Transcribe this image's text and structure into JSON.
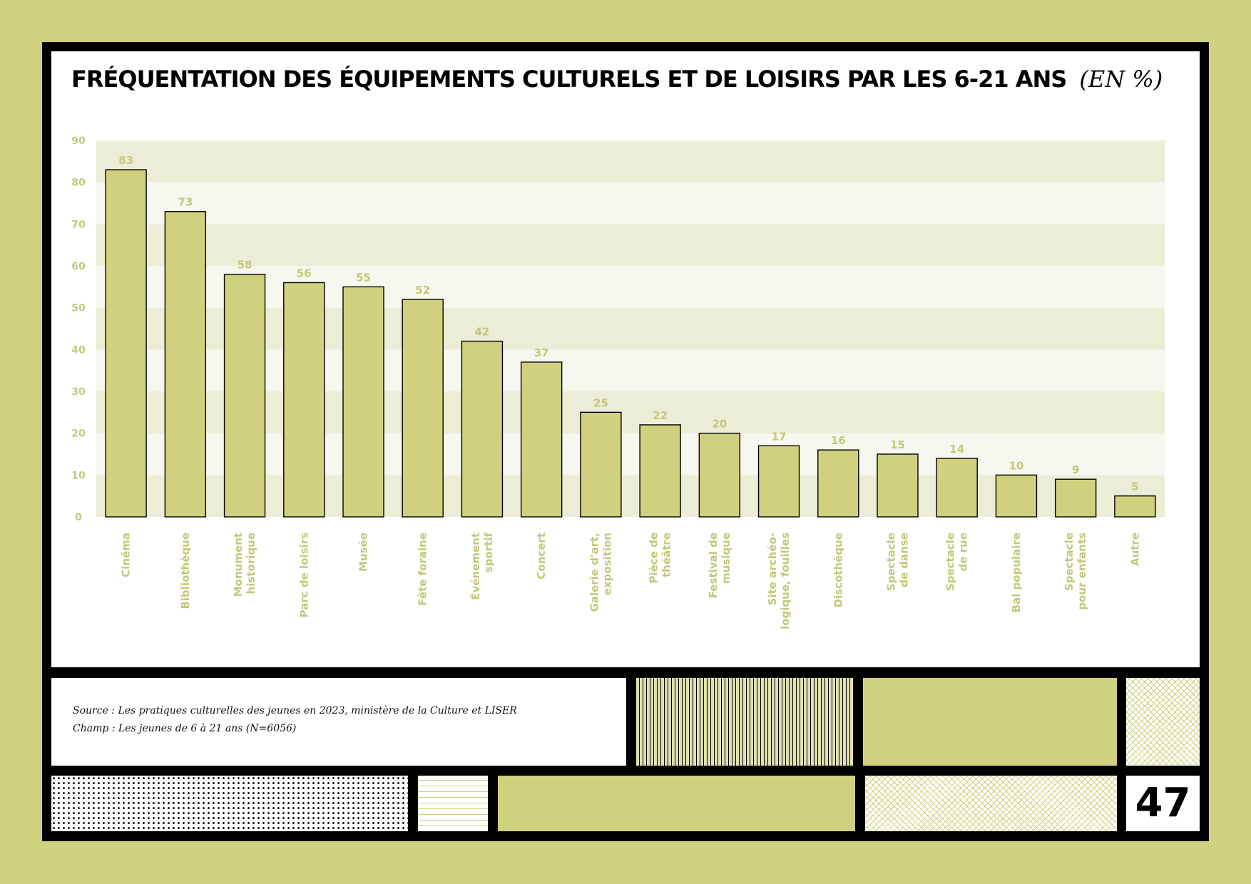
{
  "title": "FRÉQUENTATION DES ÉQUIPEMENTS CULTURELS ET DE LOISIRS PAR LES 6-21 ANS",
  "title_unit": "(EN %)",
  "source": "Source : Les pratiques culturelles des jeunes en 2023, ministère de la Culture et LISER",
  "field": "Champ : Les jeunes de 6 à 21 ans (N=6056)",
  "page_number": "47",
  "colors": {
    "background": "#cfd17e",
    "bar": "#cfd17e",
    "band_dark": "#ecedd7",
    "band_light": "#f6f7ee",
    "label": "#c4c77a",
    "frame": "#000000"
  },
  "chart_data": {
    "type": "bar",
    "title": "FRÉQUENTATION DES ÉQUIPEMENTS CULTURELS ET DE LOISIRS PAR LES 6-21 ANS",
    "unit": "(EN %)",
    "categories": [
      [
        "Cinéma"
      ],
      [
        "Bibliothèque"
      ],
      [
        "Monument",
        "historique"
      ],
      [
        "Parc de loisirs"
      ],
      [
        "Musée"
      ],
      [
        "Fête foraine"
      ],
      [
        "Événement",
        "sportif"
      ],
      [
        "Concert"
      ],
      [
        "Galerie d'art,",
        "exposition"
      ],
      [
        "Pièce de",
        "théâtre"
      ],
      [
        "Festival de",
        "musique"
      ],
      [
        "Site archéo-",
        "logique, fouilles"
      ],
      [
        "Discothèque"
      ],
      [
        "Spectacle",
        "de danse"
      ],
      [
        "Spectacle",
        "de rue"
      ],
      [
        "Bal populaire"
      ],
      [
        "Spectacle",
        "pour enfants"
      ],
      [
        "Autre"
      ]
    ],
    "values": [
      83,
      73,
      58,
      56,
      55,
      52,
      42,
      37,
      25,
      22,
      20,
      17,
      16,
      15,
      14,
      10,
      9,
      5
    ],
    "ylim": [
      0,
      90
    ],
    "yticks": [
      0,
      10,
      20,
      30,
      40,
      50,
      60,
      70,
      80,
      90
    ],
    "xlabel": "",
    "ylabel": "",
    "grid": "alternating horizontal bands",
    "legend": "none"
  }
}
